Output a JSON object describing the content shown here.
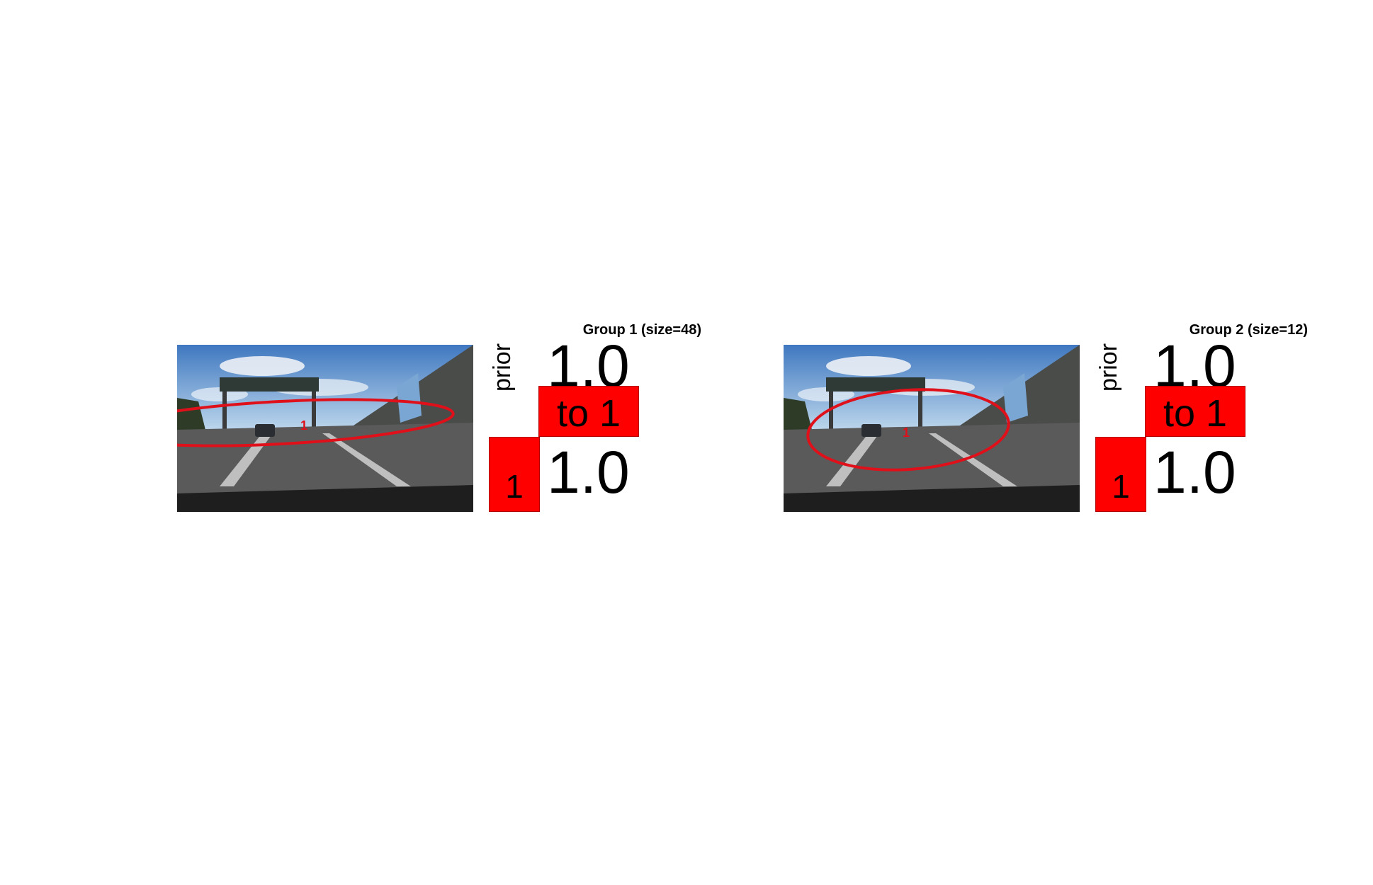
{
  "groups": [
    {
      "title": "Group 1 (size=48)",
      "marker_label": "1",
      "prior_label": "prior",
      "top_value": "1.0",
      "bottom_value": "1.0",
      "transition_label": "to 1",
      "state_label": "1"
    },
    {
      "title": "Group 2 (size=12)",
      "marker_label": "1",
      "prior_label": "prior",
      "top_value": "1.0",
      "bottom_value": "1.0",
      "transition_label": "to 1",
      "state_label": "1"
    }
  ],
  "colors": {
    "ellipse": "#e0101a",
    "box": "#ff0000"
  },
  "icons": [
    "road-scene-photo"
  ]
}
